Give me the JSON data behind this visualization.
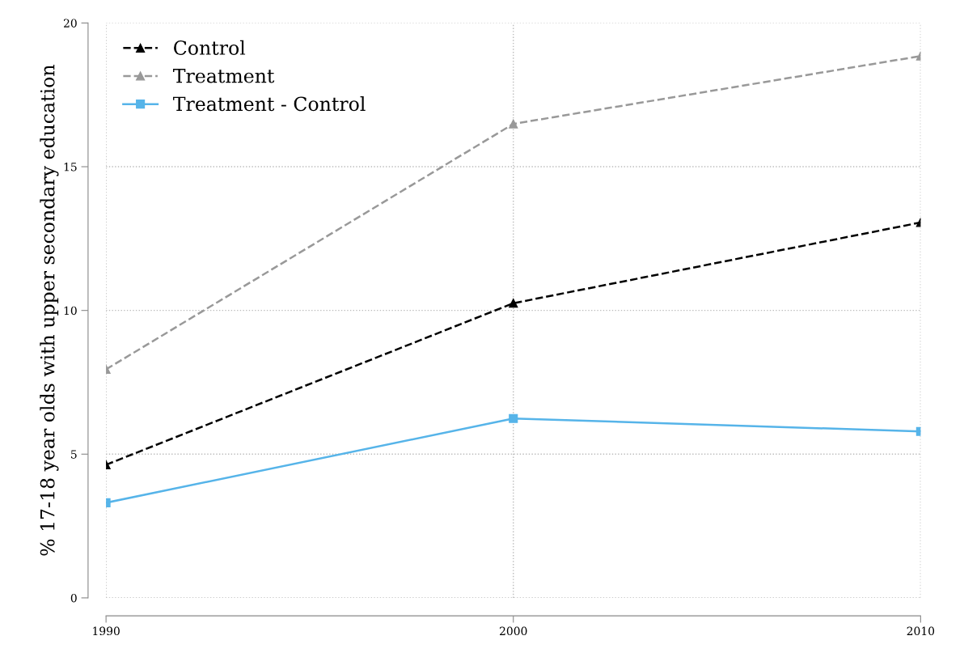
{
  "chart_data": {
    "type": "line",
    "ylabel": "% 17-18 year olds with upper secondary education",
    "x": [
      1990,
      2000,
      2010
    ],
    "xlim": [
      1990,
      2010
    ],
    "xticks": [
      1990,
      2000,
      2010
    ],
    "ylim": [
      0,
      20
    ],
    "yticks": [
      0,
      5,
      10,
      15,
      20
    ],
    "grid": true,
    "legend": "top left",
    "series": [
      {
        "name": "Control",
        "color": "#000000",
        "values": [
          4.63,
          10.25,
          13.06
        ],
        "marker": "triangle",
        "line_style": "dashed"
      },
      {
        "name": "Treatment",
        "color": "#999999",
        "values": [
          7.95,
          16.49,
          18.85
        ],
        "marker": "triangle",
        "line_style": "dashed"
      },
      {
        "name": "Treatment - Control",
        "color": "#56b4e9",
        "values": [
          3.31,
          6.24,
          5.79
        ],
        "marker": "square",
        "line_style": "solid"
      }
    ]
  }
}
